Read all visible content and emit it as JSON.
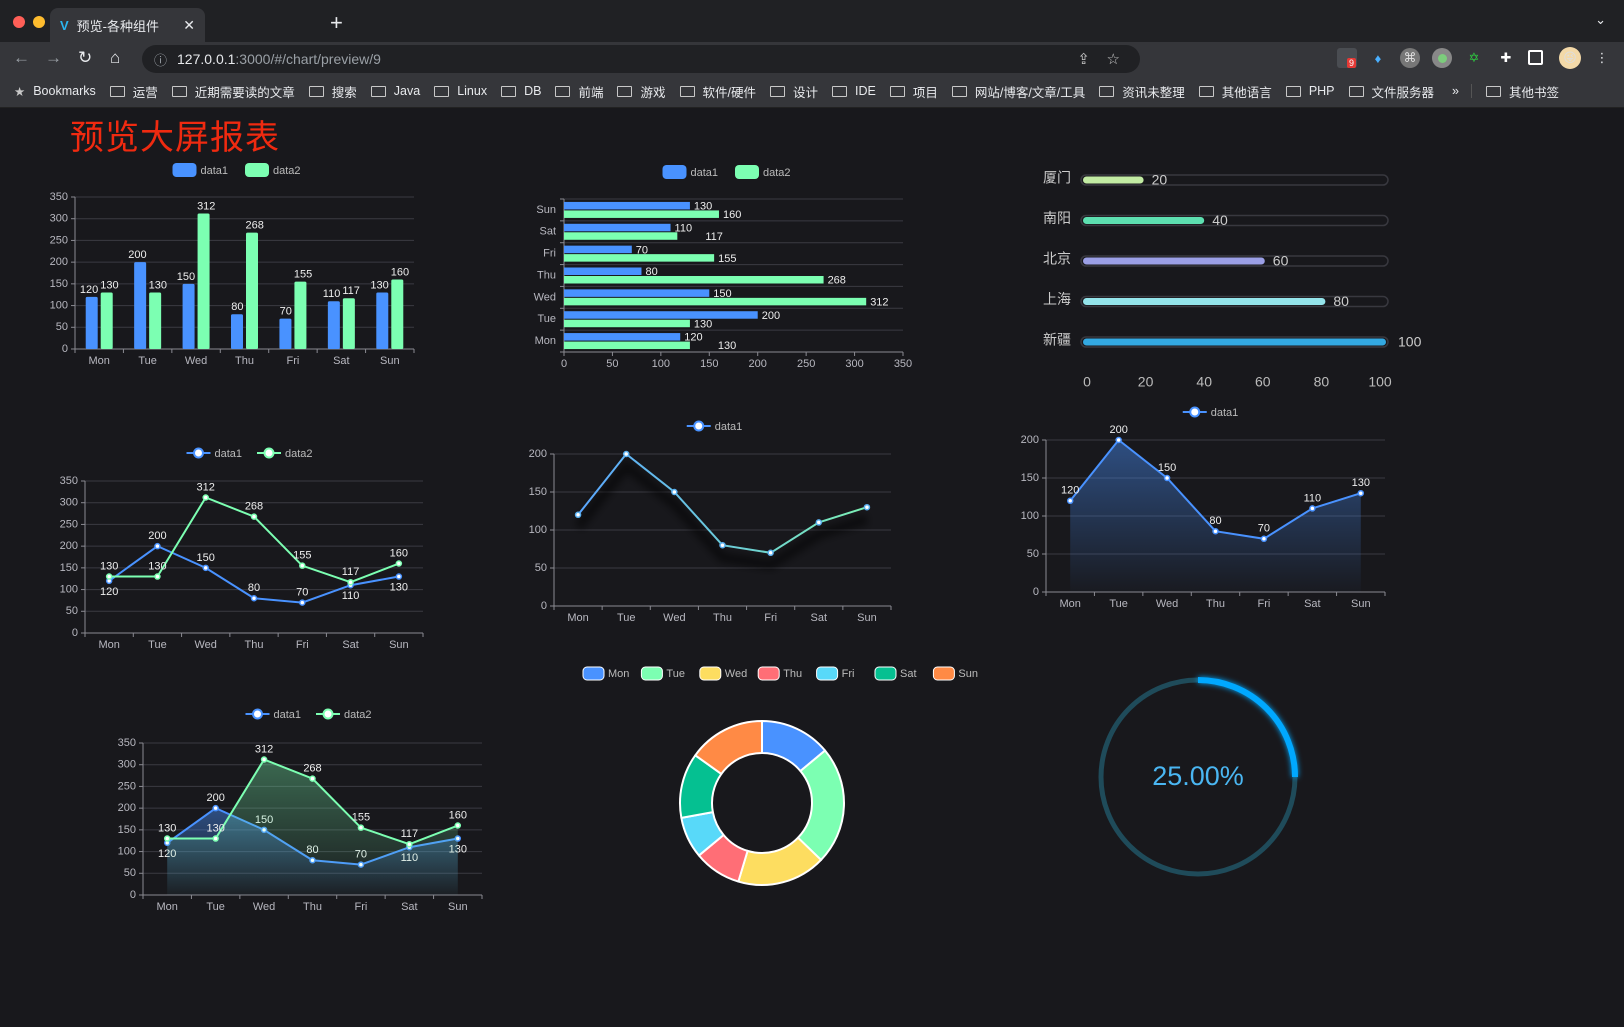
{
  "browser": {
    "tab_title": "预览-各种组件",
    "url_host": "127.0.0.1",
    "url_path": ":3000/#/chart/preview/9",
    "extension_badge": "9",
    "bookmarks": [
      "Bookmarks",
      "运营",
      "近期需要读的文章",
      "搜索",
      "Java",
      "Linux",
      "DB",
      "前端",
      "游戏",
      "软件/硬件",
      "设计",
      "IDE",
      "项目",
      "网站/博客/文章/工具",
      "资讯未整理",
      "其他语言",
      "PHP",
      "文件服务器"
    ],
    "bookmarks_more": "»",
    "other_bookmarks": "其他书签"
  },
  "page": {
    "title": "预览大屏报表",
    "title_color": "#f02a10"
  },
  "colors": {
    "data1": "#4992ff",
    "data2": "#7cffb2"
  },
  "chart_data": [
    {
      "type": "bar",
      "orientation": "vertical",
      "categories": [
        "Mon",
        "Tue",
        "Wed",
        "Thu",
        "Fri",
        "Sat",
        "Sun"
      ],
      "series": [
        {
          "name": "data1",
          "values": [
            120,
            200,
            150,
            80,
            70,
            110,
            130
          ]
        },
        {
          "name": "data2",
          "values": [
            130,
            130,
            312,
            268,
            155,
            117,
            160
          ]
        }
      ],
      "ylim": [
        0,
        350
      ],
      "yticks": [
        0,
        50,
        100,
        150,
        200,
        250,
        300,
        350
      ],
      "grid": true,
      "legend": "top",
      "data_labels": true
    },
    {
      "type": "bar",
      "orientation": "horizontal",
      "categories": [
        "Mon",
        "Tue",
        "Wed",
        "Thu",
        "Fri",
        "Sat",
        "Sun"
      ],
      "series": [
        {
          "name": "data1",
          "values": [
            120,
            200,
            150,
            80,
            70,
            110,
            130
          ]
        },
        {
          "name": "data2",
          "values": [
            130,
            130,
            312,
            268,
            155,
            117,
            160
          ]
        }
      ],
      "xlim": [
        0,
        350
      ],
      "xticks": [
        0,
        50,
        100,
        150,
        200,
        250,
        300,
        350
      ],
      "grid": true,
      "legend": "top",
      "data_labels": true
    },
    {
      "type": "bar",
      "orientation": "horizontal",
      "categories": [
        "厦门",
        "南阳",
        "北京",
        "上海",
        "新疆"
      ],
      "values": [
        20,
        40,
        60,
        80,
        100
      ],
      "xlim": [
        0,
        100
      ],
      "xticks": [
        0,
        20,
        40,
        60,
        80,
        100
      ],
      "colors": [
        "#c2eba3",
        "#5ddfb0",
        "#9b9fe6",
        "#94e4ea",
        "#33a9e2"
      ],
      "data_labels": true
    },
    {
      "type": "line",
      "categories": [
        "Mon",
        "Tue",
        "Wed",
        "Thu",
        "Fri",
        "Sat",
        "Sun"
      ],
      "series": [
        {
          "name": "data1",
          "values": [
            120,
            200,
            150,
            80,
            70,
            110,
            130
          ]
        },
        {
          "name": "data2",
          "values": [
            130,
            130,
            312,
            268,
            155,
            117,
            160
          ]
        }
      ],
      "ylim": [
        0,
        350
      ],
      "yticks": [
        0,
        50,
        100,
        150,
        200,
        250,
        300,
        350
      ],
      "grid": true,
      "legend": "top",
      "data_labels": true
    },
    {
      "type": "line",
      "categories": [
        "Mon",
        "Tue",
        "Wed",
        "Thu",
        "Fri",
        "Sat",
        "Sun"
      ],
      "series": [
        {
          "name": "data1",
          "values": [
            120,
            200,
            150,
            80,
            70,
            110,
            130
          ]
        }
      ],
      "ylim": [
        0,
        200
      ],
      "yticks": [
        0,
        50,
        100,
        150,
        200
      ],
      "grid": true,
      "legend": "top",
      "data_labels": false
    },
    {
      "type": "area",
      "categories": [
        "Mon",
        "Tue",
        "Wed",
        "Thu",
        "Fri",
        "Sat",
        "Sun"
      ],
      "series": [
        {
          "name": "data1",
          "values": [
            120,
            200,
            150,
            80,
            70,
            110,
            130
          ]
        }
      ],
      "ylim": [
        0,
        200
      ],
      "yticks": [
        0,
        50,
        100,
        150,
        200
      ],
      "grid": true,
      "legend": "top",
      "data_labels": true
    },
    {
      "type": "area",
      "categories": [
        "Mon",
        "Tue",
        "Wed",
        "Thu",
        "Fri",
        "Sat",
        "Sun"
      ],
      "series": [
        {
          "name": "data1",
          "values": [
            120,
            200,
            150,
            80,
            70,
            110,
            130
          ]
        },
        {
          "name": "data2",
          "values": [
            130,
            130,
            312,
            268,
            155,
            117,
            160
          ]
        }
      ],
      "ylim": [
        0,
        350
      ],
      "yticks": [
        0,
        50,
        100,
        150,
        200,
        250,
        300,
        350
      ],
      "grid": true,
      "legend": "top",
      "data_labels": true
    },
    {
      "type": "pie",
      "donut": true,
      "categories": [
        "Mon",
        "Tue",
        "Wed",
        "Thu",
        "Fri",
        "Sat",
        "Sun"
      ],
      "values": [
        120,
        200,
        150,
        80,
        70,
        110,
        130
      ],
      "colors": [
        "#4992ff",
        "#7cffb2",
        "#fddd60",
        "#ff6e76",
        "#58d9f9",
        "#05c091",
        "#ff8a45"
      ],
      "legend": "top"
    },
    {
      "type": "gauge",
      "value": 25,
      "label": "25.00%",
      "color": "#00a8ff"
    }
  ]
}
